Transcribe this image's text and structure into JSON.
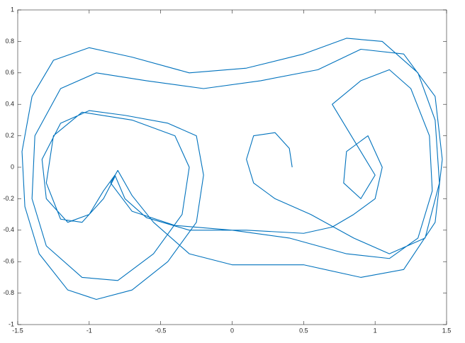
{
  "chart_data": {
    "type": "line",
    "x": [
      0.42,
      0.4,
      0.3,
      0.15,
      0.1,
      0.15,
      0.3,
      0.55,
      0.85,
      1.1,
      1.35,
      1.45,
      1.42,
      1.3,
      1.05,
      0.8,
      0.5,
      0.1,
      -0.3,
      -0.7,
      -1.0,
      -1.25,
      -1.4,
      -1.47,
      -1.45,
      -1.35,
      -1.15,
      -0.95,
      -0.7,
      -0.45,
      -0.25,
      -0.2,
      -0.25,
      -0.45,
      -0.75,
      -1.0,
      -1.2,
      -1.33,
      -1.3,
      -1.15,
      -1.0,
      -0.9,
      -0.82,
      -0.75,
      -0.6,
      -0.3,
      0.1,
      0.5,
      0.7,
      0.85,
      1.0,
      1.05,
      0.95,
      0.8,
      0.78,
      0.9,
      1.0,
      0.9,
      0.7,
      0.9,
      1.1,
      1.25,
      1.38,
      1.4,
      1.3,
      1.1,
      0.8,
      0.4,
      0,
      -0.4,
      -0.7,
      -0.85,
      -0.8,
      -0.7,
      -0.55,
      -0.3,
      0,
      0.5,
      0.9,
      1.2,
      1.42,
      1.47,
      1.42,
      1.2,
      0.9,
      0.6,
      0.2,
      -0.2,
      -0.6,
      -0.95,
      -1.2,
      -1.38,
      -1.4,
      -1.3,
      -1.05,
      -0.8,
      -0.55,
      -0.35,
      -0.3,
      -0.4,
      -0.7,
      -1.05,
      -1.25,
      -1.3,
      -1.2,
      -1.05,
      -0.9,
      -0.82
    ],
    "series": [
      {
        "color": "#0072bd",
        "values": [
          0,
          0.12,
          0.22,
          0.2,
          0.05,
          -0.1,
          -0.2,
          -0.3,
          -0.45,
          -0.55,
          -0.45,
          -0.1,
          0.3,
          0.6,
          0.8,
          0.82,
          0.72,
          0.63,
          0.6,
          0.7,
          0.76,
          0.68,
          0.45,
          0.1,
          -0.25,
          -0.55,
          -0.78,
          -0.84,
          -0.78,
          -0.6,
          -0.35,
          -0.05,
          0.2,
          0.28,
          0.33,
          0.36,
          0.28,
          0.05,
          -0.2,
          -0.35,
          -0.3,
          -0.15,
          -0.05,
          -0.2,
          -0.32,
          -0.4,
          -0.4,
          -0.42,
          -0.38,
          -0.3,
          -0.2,
          0,
          0.2,
          0.1,
          -0.1,
          -0.2,
          -0.05,
          0.1,
          0.4,
          0.55,
          0.62,
          0.5,
          0.2,
          -0.15,
          -0.45,
          -0.58,
          -0.55,
          -0.45,
          -0.4,
          -0.37,
          -0.28,
          -0.1,
          -0.02,
          -0.18,
          -0.35,
          -0.55,
          -0.62,
          -0.62,
          -0.7,
          -0.65,
          -0.35,
          0.05,
          0.45,
          0.72,
          0.75,
          0.62,
          0.55,
          0.5,
          0.55,
          0.6,
          0.5,
          0.2,
          -0.2,
          -0.5,
          -0.7,
          -0.72,
          -0.55,
          -0.3,
          0,
          0.2,
          0.3,
          0.35,
          0.2,
          -0.1,
          -0.33,
          -0.35,
          -0.2,
          -0.06
        ]
      }
    ],
    "xlim": [
      -1.5,
      1.5
    ],
    "xticks": [
      -1.5,
      -1,
      -0.5,
      0,
      0.5,
      1,
      1.5
    ],
    "ylim": [
      -1,
      1
    ],
    "yticks": [
      -1,
      -0.8,
      -0.6,
      -0.4,
      -0.2,
      0,
      0.2,
      0.4,
      0.6,
      0.8,
      1
    ],
    "grid": false
  }
}
